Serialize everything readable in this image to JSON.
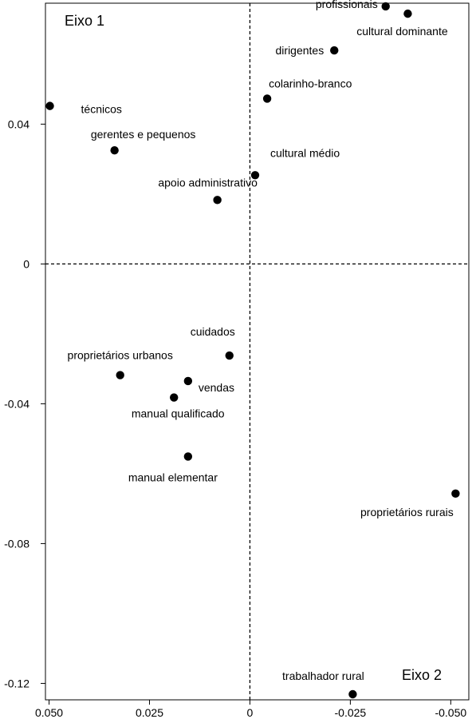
{
  "chart_data": {
    "type": "scatter",
    "title": "",
    "xlabel": "",
    "ylabel": "",
    "x_reversed": true,
    "xlim": [
      0.0509,
      -0.0545
    ],
    "ylim": [
      -0.1247,
      0.0746
    ],
    "x_ticks": [
      0.05,
      0.025,
      0,
      -0.025,
      -0.05
    ],
    "x_tick_labels": [
      "0.050",
      "0.025",
      "0",
      "-0.025",
      "-0.050"
    ],
    "y_ticks": [
      0.04,
      0,
      -0.04,
      -0.08,
      -0.12
    ],
    "y_tick_labels": [
      "0.04",
      "0",
      "-0.04",
      "-0.08",
      "-0.12"
    ],
    "reference_lines": {
      "x": 0,
      "y": 0,
      "style": "dashed"
    },
    "corner_labels": {
      "top_left": "Eixo 1",
      "bottom_right": "Eixo 2"
    },
    "points": [
      {
        "label": "profissionais",
        "x": -0.0338,
        "y": 0.0737
      },
      {
        "label": "cultural dominante",
        "x": -0.0393,
        "y": 0.0716
      },
      {
        "label": "dirigentes",
        "x": -0.021,
        "y": 0.0611
      },
      {
        "label": "colarinho-branco",
        "x": -0.0043,
        "y": 0.0473
      },
      {
        "label": "técnicos",
        "x": 0.0498,
        "y": 0.0452
      },
      {
        "label": "gerentes e pequenos",
        "x": 0.0337,
        "y": 0.0325
      },
      {
        "label": "cultural médio",
        "x": -0.0013,
        "y": 0.0254
      },
      {
        "label": "apoio administrativo",
        "x": 0.0081,
        "y": 0.0183
      },
      {
        "label": "cuidados",
        "x": 0.0051,
        "y": -0.0262
      },
      {
        "label": "proprietários urbanos",
        "x": 0.0323,
        "y": -0.0318
      },
      {
        "label": "vendas",
        "x": 0.0154,
        "y": -0.0335
      },
      {
        "label": "manual qualificado",
        "x": 0.0189,
        "y": -0.0382
      },
      {
        "label": "manual elementar",
        "x": 0.0154,
        "y": -0.0551
      },
      {
        "label": "proprietários rurais",
        "x": -0.0512,
        "y": -0.0657
      },
      {
        "label": "trabalhador rural",
        "x": -0.0256,
        "y": -0.1231
      }
    ]
  }
}
